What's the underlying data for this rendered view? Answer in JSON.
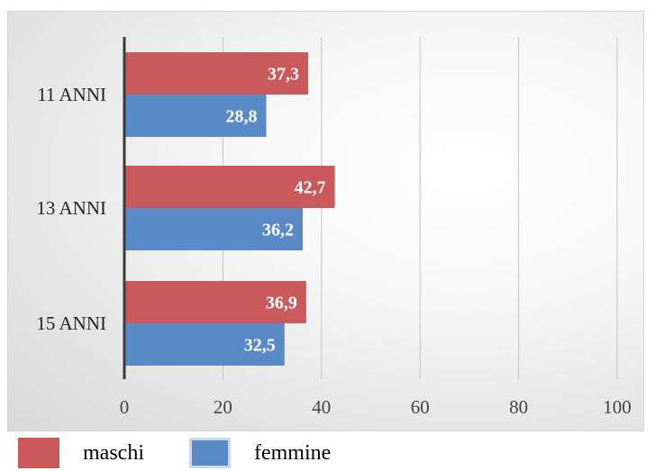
{
  "chart_data": {
    "type": "bar",
    "orientation": "horizontal",
    "categories": [
      "11 ANNI",
      "13 ANNI",
      "15 ANNI"
    ],
    "series": [
      {
        "name": "maschi",
        "values": [
          37.3,
          42.7,
          36.9
        ],
        "labels": [
          "37,3",
          "42,7",
          "36,9"
        ],
        "color": "#c9595a"
      },
      {
        "name": "femmine",
        "values": [
          28.8,
          36.2,
          32.5
        ],
        "labels": [
          "28,8",
          "36,2",
          "32,5"
        ],
        "color": "#5a8ac6"
      }
    ],
    "xlim": [
      0,
      100
    ],
    "xticks": [
      "0",
      "20",
      "40",
      "60",
      "80",
      "100"
    ],
    "grid": true,
    "legend_position": "bottom"
  }
}
